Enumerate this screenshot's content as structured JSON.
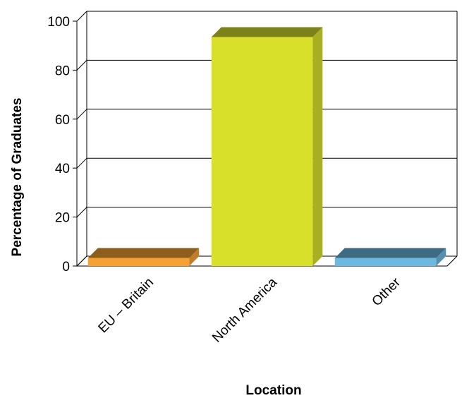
{
  "chart_data": {
    "type": "bar",
    "title": "",
    "xlabel": "Location",
    "ylabel": "Percentage of Graduates",
    "categories": [
      "EU – Britain",
      "North America",
      "Other"
    ],
    "values": [
      3.3,
      93.5,
      3.3
    ],
    "ylim": [
      0,
      100
    ],
    "yticks": [
      0,
      20,
      40,
      60,
      80,
      100
    ],
    "ytick_labels": [
      "0",
      "20",
      "40",
      "60",
      "80",
      "100"
    ],
    "grid": true,
    "legend": "none",
    "style": "3d",
    "colors": [
      "#f5a232",
      "#d8e02a",
      "#6cb8e0"
    ]
  }
}
